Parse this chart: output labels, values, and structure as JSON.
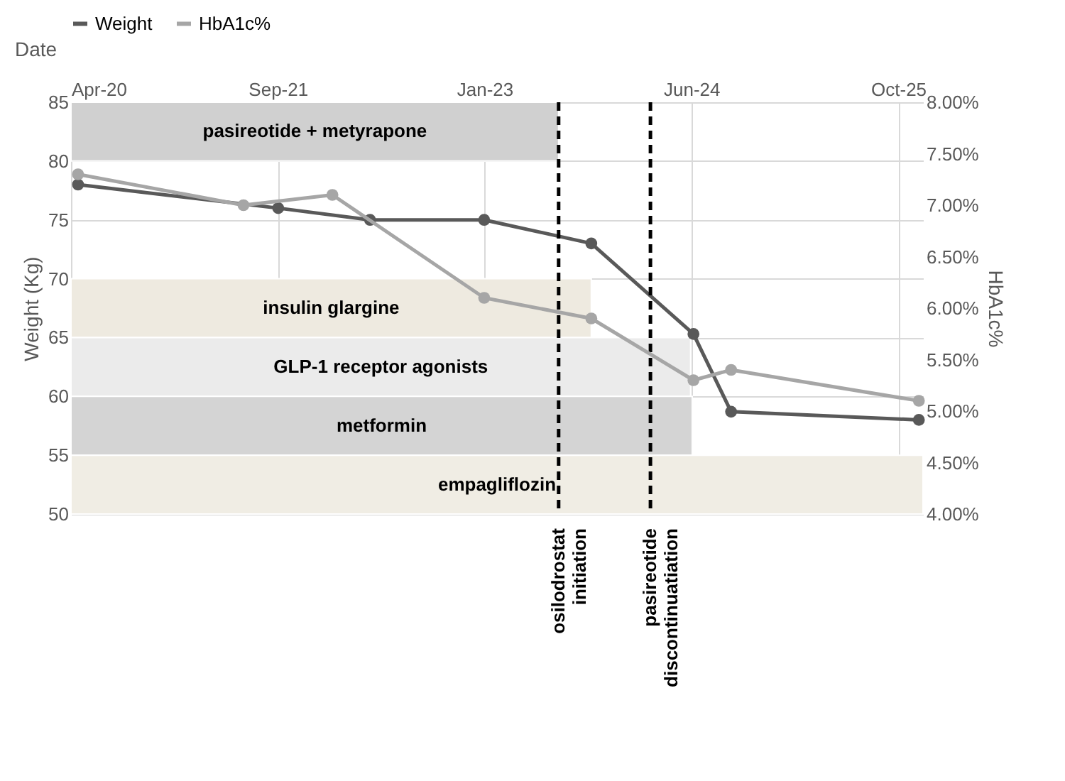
{
  "chart_data": {
    "type": "line",
    "xlabel": "Date",
    "ylabel": "Weight (Kg)",
    "y2label": "HbA1c%",
    "xlim": [
      "2020-04-25",
      "2025-12-15"
    ],
    "xticks": [
      {
        "value": "2020-04-25",
        "label": "Apr-20"
      },
      {
        "value": "2021-09-07",
        "label": "Sep-21"
      },
      {
        "value": "2023-01-20",
        "label": "Jan-23"
      },
      {
        "value": "2024-06-03",
        "label": "Jun-24"
      },
      {
        "value": "2025-10-16",
        "label": "Oct-25"
      }
    ],
    "ylim": [
      50,
      85
    ],
    "yticks": [
      50,
      55,
      60,
      65,
      70,
      75,
      80,
      85
    ],
    "y2lim": [
      4,
      8
    ],
    "y2ticks": [
      {
        "value": 4,
        "label": "4.00%"
      },
      {
        "value": 4.5,
        "label": "4.50%"
      },
      {
        "value": 5,
        "label": "5.00%"
      },
      {
        "value": 5.5,
        "label": "5.50%"
      },
      {
        "value": 6,
        "label": "6.00%"
      },
      {
        "value": 6.5,
        "label": "6.50%"
      },
      {
        "value": 7,
        "label": "7.00%"
      },
      {
        "value": 7.5,
        "label": "7.50%"
      },
      {
        "value": 8,
        "label": "8.00%"
      }
    ],
    "series": [
      {
        "name": "Weight",
        "color": "#595959",
        "x": [
          "2020-05-12",
          "2021-09-08",
          "2022-04-18",
          "2023-01-19",
          "2023-10-05",
          "2024-06-08",
          "2024-09-07",
          "2025-12-05"
        ],
        "values": [
          78,
          76,
          75,
          75,
          73,
          65.3,
          58.7,
          58
        ]
      },
      {
        "name": "HbA1c%",
        "color": "#a6a6a6",
        "axis": "y2",
        "x": [
          "2020-05-12",
          "2021-06-16",
          "2022-01-17",
          "2023-01-19",
          "2023-10-05",
          "2024-06-08",
          "2024-09-07",
          "2025-12-05"
        ],
        "values": [
          7.3,
          7.0,
          7.1,
          6.1,
          5.9,
          5.3,
          5.4,
          5.1
        ]
      }
    ],
    "bands": [
      {
        "axis": "x",
        "from": "2020-04-25",
        "to": "2023-07-18",
        "label": "pasireotide + metyrapone",
        "color": "#d0d0d0"
      },
      {
        "axis": "x",
        "from": "2020-04-25",
        "to": "2023-10-05",
        "label": "insulin glargine",
        "color": "#eeeae0"
      },
      {
        "axis": "x",
        "from": "2020-04-25",
        "to": "2024-06-01",
        "label": "GLP-1 receptor agonists",
        "color": "#ebebeb"
      },
      {
        "axis": "x",
        "from": "2020-04-25",
        "to": "2024-06-05",
        "label": "metformin",
        "color": "#d4d4d4"
      },
      {
        "axis": "x",
        "from": "2020-04-25",
        "to": "2025-12-15",
        "label": "empagliflozin",
        "color": "#f0ede4"
      }
    ],
    "ref_lines": [
      {
        "axis": "x",
        "value": "2023-07-18",
        "label": "osilodrostat initiation",
        "color": "#000000",
        "line_style": "dashed"
      },
      {
        "axis": "x",
        "value": "2024-02-25",
        "label": "pasireotide discontinuatiation",
        "color": "#000000",
        "line_style": "dashed"
      }
    ],
    "grid": true,
    "legend": "top",
    "marker": "circle",
    "line_style": "solid"
  }
}
